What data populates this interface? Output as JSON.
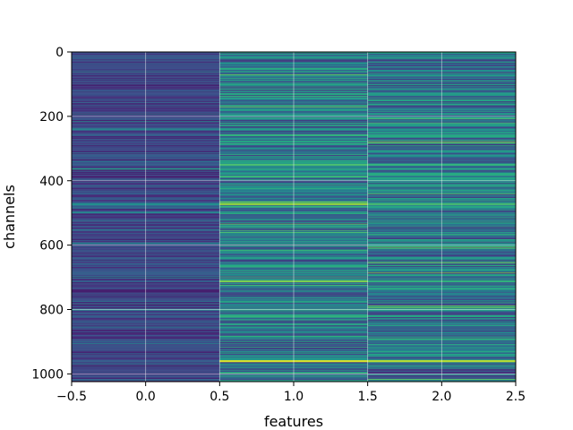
{
  "chart_data": {
    "type": "heatmap",
    "title": "",
    "xlabel": "features",
    "ylabel": "channels",
    "xlim": [
      -0.5,
      2.5
    ],
    "ylim": [
      1024,
      0
    ],
    "y_inverted": true,
    "x_ticks": [
      -0.5,
      0.0,
      0.5,
      1.0,
      1.5,
      2.0,
      2.5
    ],
    "x_tick_labels": [
      "−0.5",
      "0.0",
      "0.5",
      "1.0",
      "1.5",
      "2.0",
      "2.5"
    ],
    "y_ticks": [
      0,
      200,
      400,
      600,
      800,
      1000
    ],
    "y_tick_labels": [
      "0",
      "200",
      "400",
      "600",
      "800",
      "1000"
    ],
    "grid": true,
    "colormap": "viridis",
    "columns": 3,
    "rows": 1024,
    "column_means": [
      0.2,
      0.4,
      0.38
    ],
    "bright_rows": [
      {
        "channel": 18,
        "values": [
          0.3,
          0.55,
          0.55
        ]
      },
      {
        "channel": 130,
        "values": [
          0.25,
          0.6,
          0.55
        ]
      },
      {
        "channel": 240,
        "values": [
          0.45,
          0.55,
          0.5
        ]
      },
      {
        "channel": 258,
        "values": [
          0.3,
          0.65,
          0.6
        ]
      },
      {
        "channel": 350,
        "values": [
          0.3,
          0.7,
          0.65
        ]
      },
      {
        "channel": 363,
        "values": [
          0.55,
          0.6,
          0.6
        ]
      },
      {
        "channel": 472,
        "values": [
          0.5,
          0.85,
          0.7
        ]
      },
      {
        "channel": 480,
        "values": [
          0.3,
          0.65,
          0.6
        ]
      },
      {
        "channel": 640,
        "values": [
          0.3,
          0.55,
          0.55
        ]
      },
      {
        "channel": 712,
        "values": [
          0.3,
          0.8,
          0.65
        ]
      },
      {
        "channel": 800,
        "values": [
          0.45,
          0.6,
          0.6
        ]
      },
      {
        "channel": 820,
        "values": [
          0.3,
          0.65,
          0.6
        ]
      },
      {
        "channel": 960,
        "values": [
          0.3,
          0.95,
          0.9
        ]
      }
    ]
  }
}
